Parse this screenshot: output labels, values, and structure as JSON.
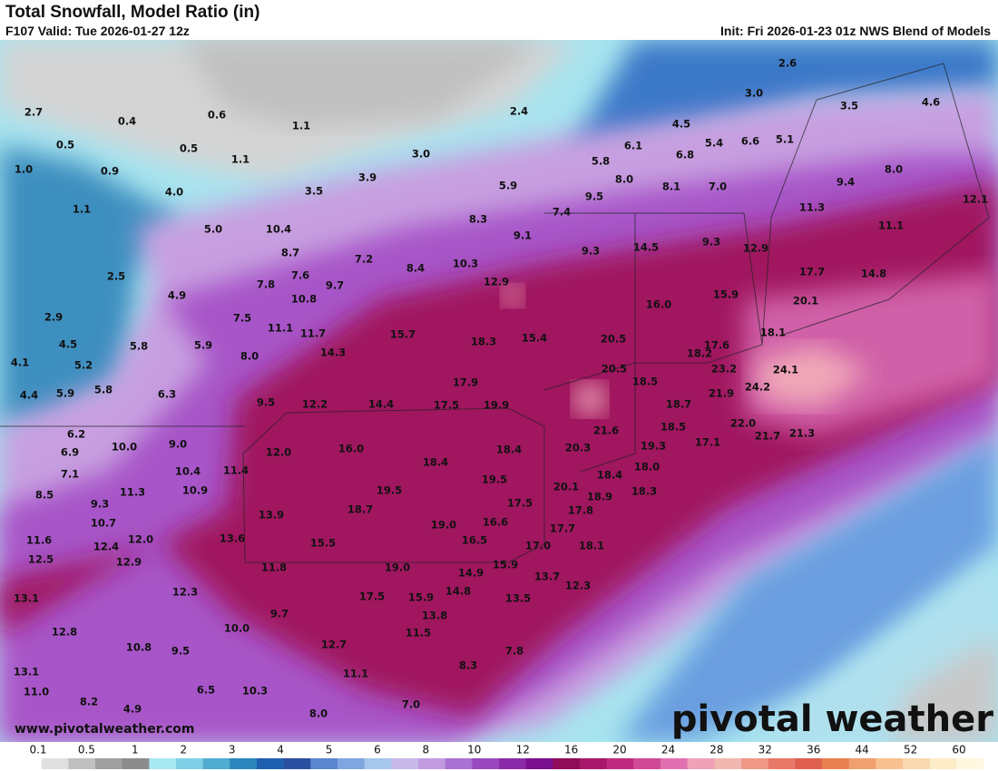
{
  "header": {
    "title": "Total Snowfall, Model Ratio (in)",
    "valid": "F107 Valid: Tue 2026-01-27 12z",
    "init": "Init: Fri 2026-01-23 01z NWS Blend of Models"
  },
  "map": {
    "labels": [
      "2.6",
      "2.7",
      "0.4",
      "0.6",
      "1.1",
      "2.4",
      "3.0",
      "3.5",
      "4.6",
      "4.5",
      "0.5",
      "0.5",
      "6.1",
      "5.4",
      "6.6",
      "5.1",
      "1.1",
      "3.0",
      "6.8",
      "5.8",
      "1.0",
      "0.9",
      "8.0",
      "8.0",
      "3.9",
      "5.9",
      "8.1",
      "7.0",
      "9.4",
      "4.0",
      "3.5",
      "9.5",
      "1.1",
      "11.3",
      "12.1",
      "7.4",
      "8.3",
      "5.0",
      "10.4",
      "11.1",
      "9.1",
      "9.3",
      "14.5",
      "9.3",
      "12.9",
      "8.7",
      "7.2",
      "10.3",
      "8.4",
      "17.7",
      "14.8",
      "2.5",
      "7.6",
      "12.9",
      "7.8",
      "9.7",
      "15.9",
      "4.9",
      "10.8",
      "20.1",
      "16.0",
      "2.9",
      "7.5",
      "11.1",
      "11.7",
      "15.7",
      "18.1",
      "15.4",
      "20.5",
      "18.3",
      "4.5",
      "5.8",
      "5.9",
      "17.6",
      "14.3",
      "18.2",
      "8.0",
      "4.1",
      "5.2",
      "20.5",
      "23.2",
      "24.1",
      "17.9",
      "18.5",
      "24.2",
      "5.8",
      "4.4",
      "5.9",
      "6.3",
      "21.9",
      "9.5",
      "12.2",
      "14.4",
      "17.5",
      "19.9",
      "18.7",
      "21.6",
      "18.5",
      "22.0",
      "6.2",
      "21.3",
      "21.7",
      "17.1",
      "10.0",
      "9.0",
      "19.3",
      "20.3",
      "16.0",
      "18.4",
      "6.9",
      "12.0",
      "18.4",
      "18.0",
      "10.4",
      "11.4",
      "7.1",
      "18.4",
      "19.5",
      "20.1",
      "18.3",
      "19.5",
      "10.9",
      "11.3",
      "8.5",
      "18.9",
      "17.5",
      "9.3",
      "18.7",
      "17.8",
      "13.9",
      "16.6",
      "10.7",
      "19.0",
      "17.7",
      "11.6",
      "12.0",
      "13.6",
      "15.5",
      "16.5",
      "17.0",
      "18.1",
      "12.4",
      "12.5",
      "12.9",
      "15.9",
      "11.8",
      "19.0",
      "14.9",
      "13.7",
      "12.3",
      "12.3",
      "14.8",
      "17.5",
      "15.9",
      "13.5",
      "13.1",
      "9.7",
      "13.8",
      "10.0",
      "12.8",
      "11.5",
      "10.8",
      "12.7",
      "9.5",
      "7.8",
      "8.3",
      "13.1",
      "11.1",
      "11.0",
      "6.5",
      "10.3",
      "8.2",
      "7.0",
      "4.9",
      "8.0"
    ]
  },
  "colorbar": {
    "labels": [
      "0.1",
      "0.5",
      "1",
      "2",
      "3",
      "4",
      "5",
      "6",
      "8",
      "10",
      "12",
      "16",
      "20",
      "24",
      "28",
      "32",
      "36",
      "44",
      "52",
      "60"
    ]
  },
  "footer": {
    "url": "www.pivotalweather.com",
    "logo": "pivotal weather"
  }
}
